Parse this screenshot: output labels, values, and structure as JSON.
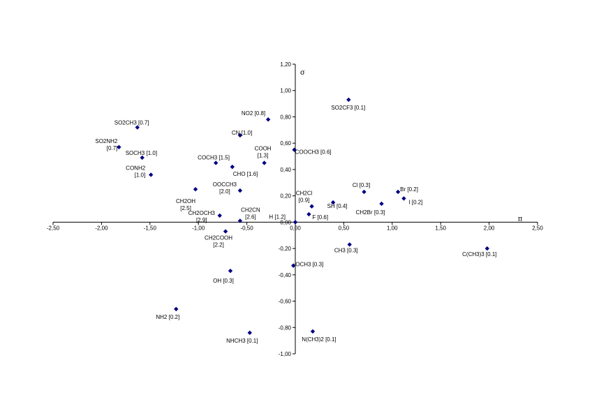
{
  "chart_data": {
    "type": "scatter",
    "xlabel": "π",
    "ylabel": "σ",
    "xlim": [
      -2.5,
      2.5
    ],
    "ylim": [
      -1.0,
      1.2
    ],
    "x_ticks": [
      -2.5,
      -2.0,
      -1.5,
      -1.0,
      -0.5,
      0.0,
      0.5,
      1.0,
      1.5,
      2.0,
      2.5
    ],
    "y_ticks": [
      -1.0,
      -0.8,
      -0.6,
      -0.4,
      -0.2,
      0.2,
      0.4,
      0.6,
      0.8,
      1.0,
      1.2
    ],
    "x_tick_labels": [
      "-2,50",
      "-2,00",
      "-1,50",
      "-1,00",
      "-0,50",
      "0,00",
      "0,50",
      "1,00",
      "1,50",
      "2,00",
      "2,50"
    ],
    "y_tick_labels": [
      "-1,00",
      "-0,80",
      "-0,60",
      "-0,40",
      "-0,20",
      "0,20",
      "0,40",
      "0,60",
      "0,80",
      "1,00",
      "1,20"
    ],
    "origin_label": "0,00",
    "marker_color": "#000080",
    "grid": false,
    "legend": "none",
    "points": [
      {
        "label": [
          "SO2CF3 [0.1]"
        ],
        "x": 0.55,
        "y": 0.93,
        "anchor": "start",
        "dx": -25,
        "dy": 14
      },
      {
        "label": [
          "NO2 [0.8]"
        ],
        "x": -0.28,
        "y": 0.78,
        "anchor": "end",
        "dx": -4,
        "dy": -6
      },
      {
        "label": [
          "CN [1.0]"
        ],
        "x": -0.57,
        "y": 0.66,
        "anchor": "start",
        "dx": -12,
        "dy": -1
      },
      {
        "label": [
          "SO2CH3 [0.7]"
        ],
        "x": -1.63,
        "y": 0.72,
        "anchor": "start",
        "dx": -33,
        "dy": -4
      },
      {
        "label": [
          "SO2NH2",
          "[0.7]"
        ],
        "x": -1.82,
        "y": 0.57,
        "anchor": "end",
        "dx": -2,
        "dy": -6
      },
      {
        "label": [
          "SOCH3 [1.0]"
        ],
        "x": -1.58,
        "y": 0.49,
        "anchor": "start",
        "dx": -24,
        "dy": -4
      },
      {
        "label": [
          "COOH",
          "[1.3]"
        ],
        "x": -0.32,
        "y": 0.45,
        "anchor": "middle",
        "dx": -2,
        "dy": -18
      },
      {
        "label": [
          "COOCH3 [0.6]"
        ],
        "x": -0.01,
        "y": 0.55,
        "anchor": "start",
        "dx": 1,
        "dy": 6
      },
      {
        "label": [
          "COCH3 [1.5]"
        ],
        "x": -0.82,
        "y": 0.45,
        "anchor": "start",
        "dx": -26,
        "dy": -5
      },
      {
        "label": [
          "CHO [1.6]"
        ],
        "x": -0.65,
        "y": 0.42,
        "anchor": "start",
        "dx": 1,
        "dy": 13
      },
      {
        "label": [
          "CONH2",
          "[1.0]"
        ],
        "x": -1.49,
        "y": 0.36,
        "anchor": "end",
        "dx": -8,
        "dy": -7
      },
      {
        "label": [
          "OOCCH3",
          "[2.0]"
        ],
        "x": -0.57,
        "y": 0.24,
        "anchor": "middle",
        "dx": -22,
        "dy": -6
      },
      {
        "label": [
          "CH2OH",
          "[2.5]"
        ],
        "x": -1.03,
        "y": 0.25,
        "anchor": "middle",
        "dx": -14,
        "dy": 20
      },
      {
        "label": [
          "CH2OCH3",
          "[2.9]"
        ],
        "x": -0.78,
        "y": 0.05,
        "anchor": "middle",
        "dx": -26,
        "dy": -1
      },
      {
        "label": [
          "CH2CN",
          "[2.6]"
        ],
        "x": -0.57,
        "y": 0.01,
        "anchor": "middle",
        "dx": 15,
        "dy": -13
      },
      {
        "label": [
          "CH2COOH",
          "[2.2]"
        ],
        "x": -0.72,
        "y": -0.07,
        "anchor": "middle",
        "dx": -10,
        "dy": 12
      },
      {
        "label": [
          "H [1.2]"
        ],
        "x": 0.0,
        "y": 0.0,
        "anchor": "end",
        "dx": -14,
        "dy": -5
      },
      {
        "label": [
          "Cl [0.3]"
        ],
        "x": 0.71,
        "y": 0.23,
        "anchor": "middle",
        "dx": -4,
        "dy": -7
      },
      {
        "label": [
          "Br [0.2]"
        ],
        "x": 1.06,
        "y": 0.23,
        "anchor": "start",
        "dx": 3,
        "dy": -1
      },
      {
        "label": [
          "I [0.2]"
        ],
        "x": 1.12,
        "y": 0.18,
        "anchor": "start",
        "dx": 7,
        "dy": 8
      },
      {
        "label": [
          "CH2Cl",
          "[0.9]"
        ],
        "x": 0.17,
        "y": 0.12,
        "anchor": "middle",
        "dx": -11,
        "dy": -16
      },
      {
        "label": [
          "SH [0.4]"
        ],
        "x": 0.39,
        "y": 0.15,
        "anchor": "middle",
        "dx": 6,
        "dy": 8
      },
      {
        "label": [
          "CH2Br [0.3]"
        ],
        "x": 0.89,
        "y": 0.14,
        "anchor": "middle",
        "dx": -16,
        "dy": 15
      },
      {
        "label": [
          "F [0.6]"
        ],
        "x": 0.14,
        "y": 0.06,
        "anchor": "start",
        "dx": 5,
        "dy": 7
      },
      {
        "label": [
          "CH3 [0.3]"
        ],
        "x": 0.56,
        "y": -0.17,
        "anchor": "middle",
        "dx": -5,
        "dy": 11
      },
      {
        "label": [
          "OCH3 [0.3]"
        ],
        "x": -0.02,
        "y": -0.33,
        "anchor": "start",
        "dx": 3,
        "dy": 1
      },
      {
        "label": [
          "OH [0.3]"
        ],
        "x": -0.67,
        "y": -0.37,
        "anchor": "middle",
        "dx": -10,
        "dy": 17
      },
      {
        "label": [
          "NH2 [0.2]"
        ],
        "x": -1.23,
        "y": -0.66,
        "anchor": "middle",
        "dx": -12,
        "dy": 14
      },
      {
        "label": [
          "NHCH3 [0.1]"
        ],
        "x": -0.47,
        "y": -0.84,
        "anchor": "middle",
        "dx": -11,
        "dy": 14
      },
      {
        "label": [
          "N(CH3)2 [0.1]"
        ],
        "x": 0.18,
        "y": -0.83,
        "anchor": "middle",
        "dx": 9,
        "dy": 14
      },
      {
        "label": [
          "C(CH3)3 [0.1]"
        ],
        "x": 1.98,
        "y": -0.2,
        "anchor": "middle",
        "dx": -11,
        "dy": 11
      }
    ]
  }
}
